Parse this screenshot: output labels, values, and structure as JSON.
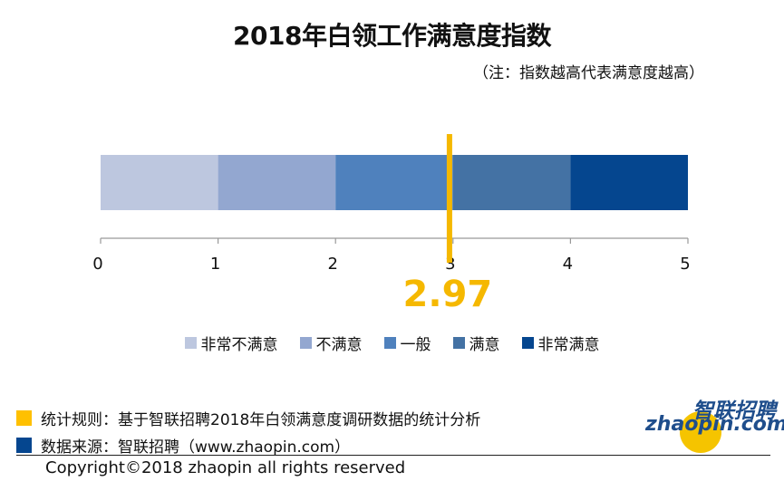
{
  "title": "2018年白领工作满意度指数",
  "subtitle": "（注：指数越高代表满意度越高）",
  "chart_data": {
    "type": "bar",
    "orientation": "horizontal-stacked",
    "xlim": [
      0,
      5
    ],
    "ticks": [
      "0",
      "1",
      "2",
      "3",
      "4",
      "5"
    ],
    "segments": [
      {
        "name": "非常不满意",
        "start": 0,
        "end": 1,
        "color": "#bdc7df"
      },
      {
        "name": "不满意",
        "start": 1,
        "end": 2,
        "color": "#93a7d0"
      },
      {
        "name": "一般",
        "start": 2,
        "end": 3,
        "color": "#4f81bd"
      },
      {
        "name": "满意",
        "start": 3,
        "end": 4,
        "color": "#4472a4"
      },
      {
        "name": "非常满意",
        "start": 4,
        "end": 5,
        "color": "#05468f"
      }
    ],
    "marker": {
      "value": 2.97,
      "label": "2.97",
      "color": "#f5b800"
    },
    "legend_position": "bottom"
  },
  "notes": [
    {
      "text": "统计规则：基于智联招聘2018年白领满意度调研数据的统计分析",
      "color": "#ffc000"
    },
    {
      "text": "数据来源：智联招聘（www.zhaopin.com）",
      "color": "#05468f"
    }
  ],
  "copyright": "Copyright©2018 zhaopin all rights reserved",
  "logo": {
    "cn": "智联招聘",
    "en": "zhaopin.com"
  }
}
